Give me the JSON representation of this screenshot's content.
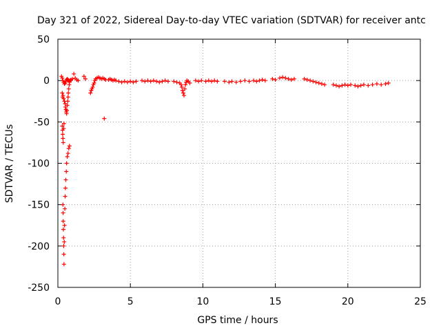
{
  "chart_data": {
    "type": "scatter",
    "title": "Day 321 of 2022, Sidereal Day-to-day VTEC variation (SDTVAR) for receiver antc",
    "xlabel": "GPS time / hours",
    "ylabel": "SDTVAR / TECUs",
    "xlim": [
      0,
      25
    ],
    "ylim": [
      -250,
      50
    ],
    "xticks": [
      0,
      5,
      10,
      15,
      20,
      25
    ],
    "yticks": [
      -250,
      -200,
      -150,
      -100,
      -50,
      0,
      50
    ],
    "grid": true,
    "marker": "+",
    "series_color": "#ff0000",
    "series": [
      {
        "name": "SDTVAR",
        "points": [
          [
            0.25,
            5
          ],
          [
            0.3,
            3
          ],
          [
            0.35,
            0
          ],
          [
            0.4,
            -2
          ],
          [
            0.45,
            -4
          ],
          [
            0.5,
            -3
          ],
          [
            0.55,
            -1
          ],
          [
            0.6,
            1
          ],
          [
            0.65,
            2
          ],
          [
            0.7,
            1
          ],
          [
            0.75,
            0
          ],
          [
            0.8,
            -1
          ],
          [
            0.85,
            0
          ],
          [
            0.9,
            1
          ],
          [
            0.3,
            -15
          ],
          [
            0.33,
            -20
          ],
          [
            0.36,
            -18
          ],
          [
            0.4,
            -22
          ],
          [
            0.45,
            -25
          ],
          [
            0.5,
            -28
          ],
          [
            0.52,
            -32
          ],
          [
            0.55,
            -35
          ],
          [
            0.58,
            -38
          ],
          [
            0.6,
            -40
          ],
          [
            0.62,
            -36
          ],
          [
            0.65,
            -30
          ],
          [
            0.68,
            -25
          ],
          [
            0.7,
            -20
          ],
          [
            0.72,
            -15
          ],
          [
            0.75,
            -10
          ],
          [
            0.78,
            -5
          ],
          [
            0.8,
            -2
          ],
          [
            0.3,
            -55
          ],
          [
            0.32,
            -60
          ],
          [
            0.33,
            -65
          ],
          [
            0.35,
            -70
          ],
          [
            0.37,
            -75
          ],
          [
            0.4,
            -58
          ],
          [
            0.42,
            -52
          ],
          [
            0.35,
            -150
          ],
          [
            0.36,
            -160
          ],
          [
            0.37,
            -170
          ],
          [
            0.38,
            -180
          ],
          [
            0.39,
            -190
          ],
          [
            0.4,
            -200
          ],
          [
            0.41,
            -210
          ],
          [
            0.42,
            -222
          ],
          [
            0.44,
            -195
          ],
          [
            0.46,
            -175
          ],
          [
            0.48,
            -155
          ],
          [
            0.5,
            -140
          ],
          [
            0.52,
            -130
          ],
          [
            0.55,
            -120
          ],
          [
            0.58,
            -110
          ],
          [
            0.6,
            -100
          ],
          [
            0.65,
            -92
          ],
          [
            0.7,
            -88
          ],
          [
            0.75,
            -82
          ],
          [
            0.8,
            -79
          ],
          [
            1.0,
            2
          ],
          [
            1.1,
            8
          ],
          [
            1.2,
            3
          ],
          [
            1.3,
            1
          ],
          [
            1.4,
            0
          ],
          [
            1.8,
            5
          ],
          [
            1.9,
            2
          ],
          [
            2.25,
            -15
          ],
          [
            2.3,
            -12
          ],
          [
            2.35,
            -10
          ],
          [
            2.4,
            -8
          ],
          [
            2.45,
            -5
          ],
          [
            2.5,
            -3
          ],
          [
            2.55,
            0
          ],
          [
            2.6,
            2
          ],
          [
            2.7,
            3
          ],
          [
            2.8,
            4
          ],
          [
            2.9,
            3
          ],
          [
            3.0,
            2
          ],
          [
            3.1,
            3
          ],
          [
            3.2,
            2
          ],
          [
            3.3,
            1
          ],
          [
            3.2,
            -46
          ],
          [
            3.5,
            1
          ],
          [
            3.6,
            2
          ],
          [
            3.7,
            1
          ],
          [
            3.8,
            0
          ],
          [
            3.9,
            1
          ],
          [
            4.0,
            0
          ],
          [
            4.2,
            -1
          ],
          [
            4.4,
            -2
          ],
          [
            4.6,
            -1
          ],
          [
            4.8,
            -2
          ],
          [
            5.0,
            -1
          ],
          [
            5.2,
            -2
          ],
          [
            5.4,
            -1
          ],
          [
            5.8,
            0
          ],
          [
            6.0,
            -1
          ],
          [
            6.2,
            0
          ],
          [
            6.4,
            -1
          ],
          [
            6.6,
            0
          ],
          [
            6.8,
            -1
          ],
          [
            7.0,
            -2
          ],
          [
            7.2,
            -1
          ],
          [
            7.4,
            0
          ],
          [
            7.6,
            -1
          ],
          [
            8.0,
            -1
          ],
          [
            8.2,
            -2
          ],
          [
            8.4,
            -3
          ],
          [
            8.5,
            -5
          ],
          [
            8.55,
            -8
          ],
          [
            8.6,
            -12
          ],
          [
            8.65,
            -15
          ],
          [
            8.7,
            -18
          ],
          [
            8.75,
            -10
          ],
          [
            8.8,
            -5
          ],
          [
            8.85,
            -2
          ],
          [
            8.9,
            0
          ],
          [
            9.0,
            -1
          ],
          [
            9.1,
            -3
          ],
          [
            9.5,
            0
          ],
          [
            9.7,
            -1
          ],
          [
            9.9,
            0
          ],
          [
            10.2,
            -1
          ],
          [
            10.4,
            0
          ],
          [
            10.6,
            -1
          ],
          [
            10.8,
            0
          ],
          [
            11.0,
            -1
          ],
          [
            11.5,
            -1
          ],
          [
            11.8,
            -2
          ],
          [
            12.0,
            -1
          ],
          [
            12.3,
            -2
          ],
          [
            12.6,
            -1
          ],
          [
            12.9,
            0
          ],
          [
            13.2,
            -1
          ],
          [
            13.5,
            0
          ],
          [
            13.7,
            -1
          ],
          [
            13.9,
            0
          ],
          [
            14.1,
            1
          ],
          [
            14.3,
            0
          ],
          [
            14.8,
            2
          ],
          [
            15.0,
            1
          ],
          [
            15.3,
            3
          ],
          [
            15.5,
            4
          ],
          [
            15.7,
            3
          ],
          [
            15.9,
            2
          ],
          [
            16.1,
            1
          ],
          [
            16.3,
            2
          ],
          [
            17.0,
            2
          ],
          [
            17.2,
            1
          ],
          [
            17.4,
            0
          ],
          [
            17.6,
            -1
          ],
          [
            17.8,
            -2
          ],
          [
            18.0,
            -3
          ],
          [
            18.2,
            -4
          ],
          [
            18.4,
            -5
          ],
          [
            19.0,
            -5
          ],
          [
            19.2,
            -6
          ],
          [
            19.4,
            -7
          ],
          [
            19.6,
            -6
          ],
          [
            19.8,
            -5
          ],
          [
            20.0,
            -6
          ],
          [
            20.2,
            -5
          ],
          [
            20.5,
            -6
          ],
          [
            20.7,
            -7
          ],
          [
            20.9,
            -6
          ],
          [
            21.1,
            -5
          ],
          [
            21.4,
            -6
          ],
          [
            21.7,
            -5
          ],
          [
            22.0,
            -4
          ],
          [
            22.3,
            -5
          ],
          [
            22.6,
            -4
          ],
          [
            22.8,
            -3
          ]
        ]
      }
    ]
  }
}
